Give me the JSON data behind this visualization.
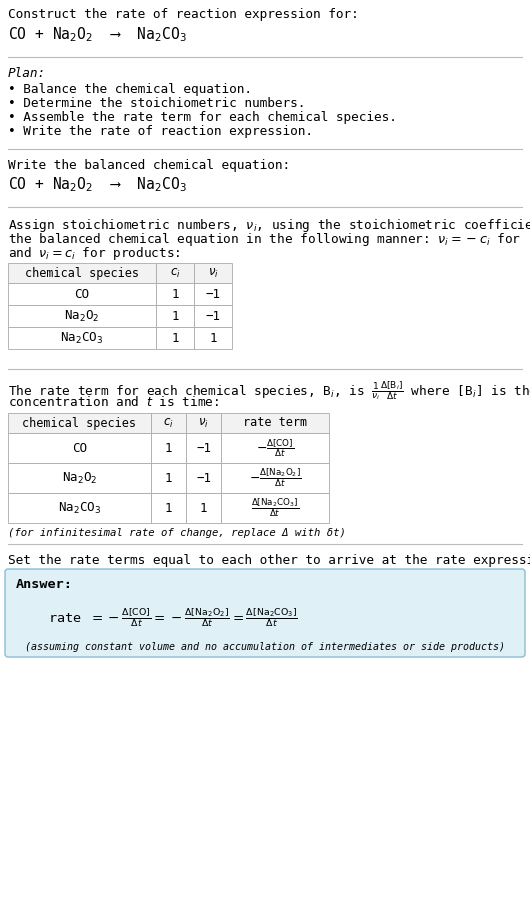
{
  "bg_color": "#ffffff",
  "text_color": "#000000",
  "header_text": "Construct the rate of reaction expression for:",
  "reaction_equation": "CO + Na$_2$O$_2$  ⟶  Na$_2$CO$_3$",
  "plan_header": "Plan:",
  "plan_items": [
    "• Balance the chemical equation.",
    "• Determine the stoichiometric numbers.",
    "• Assemble the rate term for each chemical species.",
    "• Write the rate of reaction expression."
  ],
  "balanced_header": "Write the balanced chemical equation:",
  "balanced_eq": "CO + Na$_2$O$_2$  ⟶  Na$_2$CO$_3$",
  "stoich_intro_lines": [
    "Assign stoichiometric numbers, $\\nu_i$, using the stoichiometric coefficients, $c_i$, from",
    "the balanced chemical equation in the following manner: $\\nu_i = -c_i$ for reactants",
    "and $\\nu_i = c_i$ for products:"
  ],
  "table1_headers": [
    "chemical species",
    "$c_i$",
    "$\\nu_i$"
  ],
  "table1_rows": [
    [
      "CO",
      "1",
      "−1"
    ],
    [
      "Na$_2$O$_2$",
      "1",
      "−1"
    ],
    [
      "Na$_2$CO$_3$",
      "1",
      "1"
    ]
  ],
  "rate_term_line1": "The rate term for each chemical species, B$_i$, is $\\frac{1}{\\nu_i}\\frac{\\Delta[\\mathrm{B}_i]}{\\Delta t}$ where [B$_i$] is the amount",
  "rate_term_line2": "concentration and $t$ is time:",
  "table2_headers": [
    "chemical species",
    "$c_i$",
    "$\\nu_i$",
    "rate term"
  ],
  "table2_rows": [
    [
      "CO",
      "1",
      "−1",
      "$-\\frac{\\Delta[\\mathrm{CO}]}{\\Delta t}$"
    ],
    [
      "Na$_2$O$_2$",
      "1",
      "−1",
      "$-\\frac{\\Delta[\\mathrm{Na_2O_2}]}{\\Delta t}$"
    ],
    [
      "Na$_2$CO$_3$",
      "1",
      "1",
      "$\\frac{\\Delta[\\mathrm{Na_2CO_3}]}{\\Delta t}$"
    ]
  ],
  "infinitesimal_note": "(for infinitesimal rate of change, replace Δ with δt)",
  "set_equal_text": "Set the rate terms equal to each other to arrive at the rate expression:",
  "answer_box_color": "#dff0f7",
  "answer_border_color": "#89bdd3",
  "answer_label": "Answer:",
  "rate_expr_left": "rate $= -\\frac{\\Delta[\\mathrm{CO}]}{\\Delta t} = -\\frac{\\Delta[\\mathrm{Na_2O_2}]}{\\Delta t} = \\frac{\\Delta[\\mathrm{Na_2CO_3}]}{\\Delta t}$",
  "assuming_note": "(assuming constant volume and no accumulation of intermediates or side products)"
}
